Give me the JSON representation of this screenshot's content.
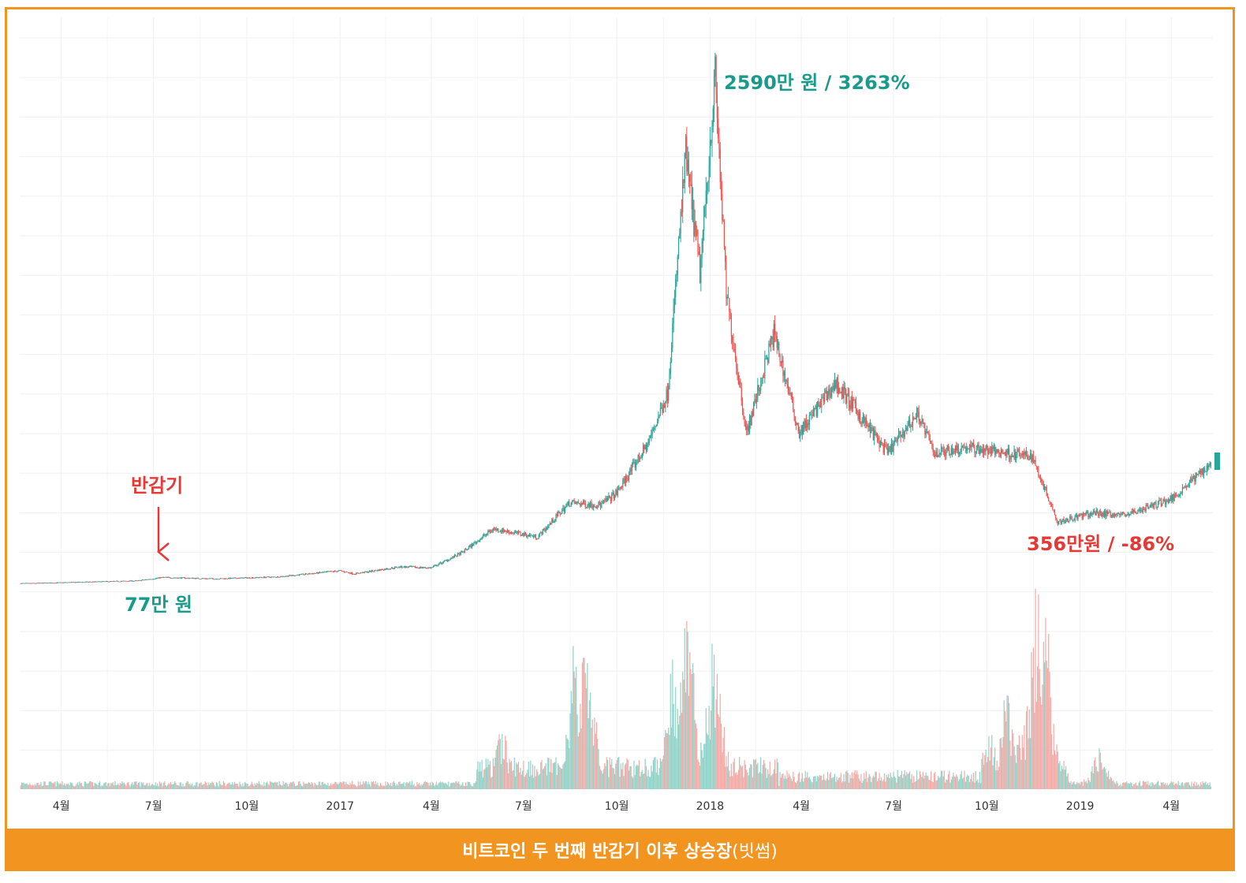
{
  "caption": {
    "main": "비트코인 두 번째 반감기 이후 상승장",
    "source": "(빗썸)"
  },
  "colors": {
    "up": "#26a69a",
    "down": "#ef5350",
    "volume_up": "#8fd3c8",
    "volume_down": "#f4a9a6",
    "frame": "#f29420",
    "annotation_green": "#1a9a8a",
    "annotation_red": "#e53935"
  },
  "annotations": {
    "peak": "2590만 원 / 3263%",
    "halving": "반감기",
    "start": "77만 원",
    "bottom": "356만원 / -86%"
  },
  "chart_data": {
    "type": "candlestick",
    "x_tick_labels": [
      "4월",
      "7월",
      "10월",
      "2017",
      "4월",
      "7월",
      "10월",
      "2018",
      "4월",
      "7월",
      "10월",
      "2019",
      "4월"
    ],
    "price_anchors": [
      [
        "2016-03-01",
        47
      ],
      [
        "2016-06-15",
        60
      ],
      [
        "2016-07-10",
        77
      ],
      [
        "2016-09-01",
        70
      ],
      [
        "2016-11-01",
        80
      ],
      [
        "2017-01-01",
        110
      ],
      [
        "2017-01-15",
        95
      ],
      [
        "2017-03-01",
        130
      ],
      [
        "2017-04-01",
        125
      ],
      [
        "2017-05-01",
        200
      ],
      [
        "2017-06-01",
        320
      ],
      [
        "2017-07-15",
        280
      ],
      [
        "2017-08-15",
        450
      ],
      [
        "2017-09-15",
        440
      ],
      [
        "2017-10-01",
        500
      ],
      [
        "2017-11-01",
        750
      ],
      [
        "2017-11-20",
        1000
      ],
      [
        "2017-12-08",
        2200
      ],
      [
        "2017-12-22",
        1600
      ],
      [
        "2018-01-06",
        2590
      ],
      [
        "2018-01-17",
        1500
      ],
      [
        "2018-02-06",
        800
      ],
      [
        "2018-03-05",
        1300
      ],
      [
        "2018-03-30",
        800
      ],
      [
        "2018-05-05",
        1050
      ],
      [
        "2018-06-25",
        700
      ],
      [
        "2018-07-25",
        900
      ],
      [
        "2018-08-10",
        700
      ],
      [
        "2018-09-10",
        730
      ],
      [
        "2018-11-15",
        680
      ],
      [
        "2018-12-10",
        356
      ],
      [
        "2019-01-15",
        400
      ],
      [
        "2019-02-15",
        390
      ],
      [
        "2019-04-01",
        470
      ],
      [
        "2019-05-10",
        650
      ]
    ],
    "volume_spikes": [
      [
        "2017-06-10",
        0.3
      ],
      [
        "2017-08-20",
        0.65
      ],
      [
        "2017-09-01",
        0.75
      ],
      [
        "2017-11-25",
        0.65
      ],
      [
        "2017-12-10",
        0.95
      ],
      [
        "2018-01-05",
        0.75
      ],
      [
        "2018-10-20",
        0.45
      ],
      [
        "2018-11-20",
        1.0
      ],
      [
        "2018-11-28",
        0.8
      ],
      [
        "2019-01-20",
        0.2
      ]
    ],
    "ylim": [
      0,
      2700
    ],
    "grid": true
  }
}
